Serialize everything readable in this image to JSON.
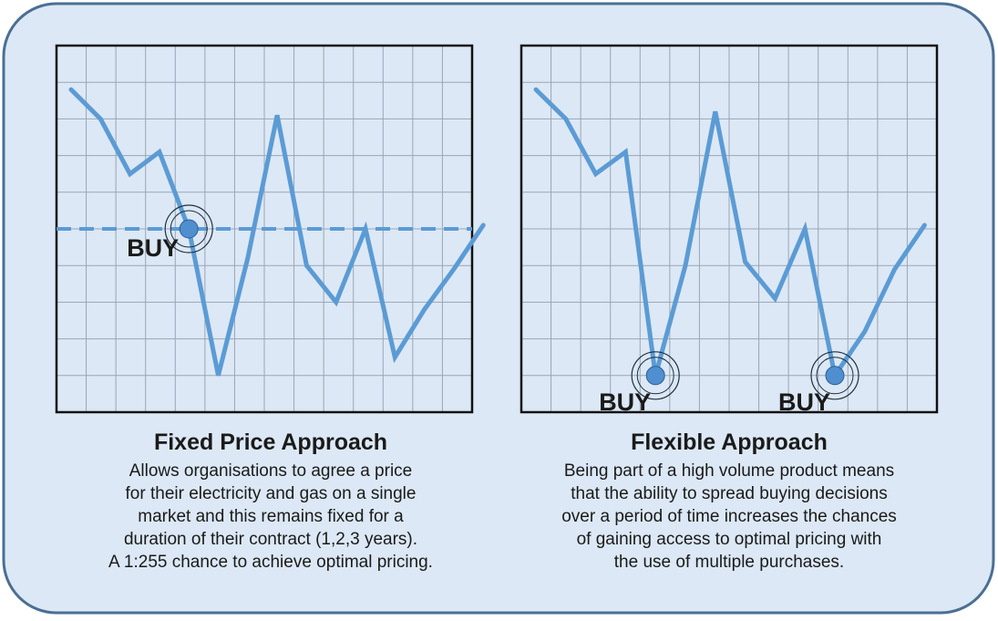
{
  "panels": [
    {
      "title": "Fixed Price Approach",
      "description": [
        "Allows organisations to agree a price",
        "for their electricity and gas on a single",
        "market and this remains fixed for a",
        "duration of their contract (1,2,3 years).",
        "A 1:255 chance to achieve optimal pricing."
      ],
      "buy_label": "BUY",
      "price_series": [
        88,
        80,
        65,
        71,
        50,
        10,
        42,
        81,
        40,
        30,
        50,
        15,
        28,
        39,
        51
      ],
      "buy_points": [
        4
      ],
      "fixed_price_line": 50
    },
    {
      "title": "Flexible Approach",
      "description": [
        "Being part of a high volume product means",
        "that the ability to spread buying decisions",
        "over a period of time increases the chances",
        "of gaining access to optimal pricing with",
        "the use of multiple purchases."
      ],
      "buy_label": "BUY",
      "price_series": [
        88,
        80,
        65,
        71,
        10,
        40,
        82,
        41,
        31,
        50,
        10,
        22,
        39,
        51
      ],
      "buy_points": [
        4,
        10
      ],
      "fixed_price_line": null
    }
  ],
  "colors": {
    "background_panel": "#dce8f5",
    "panel_border": "#4a6f94",
    "grid": "#9aa6b5",
    "line": "#5b9bd5",
    "marker_fill": "#4f8fd0",
    "marker_ring": "#1f2f3f"
  }
}
